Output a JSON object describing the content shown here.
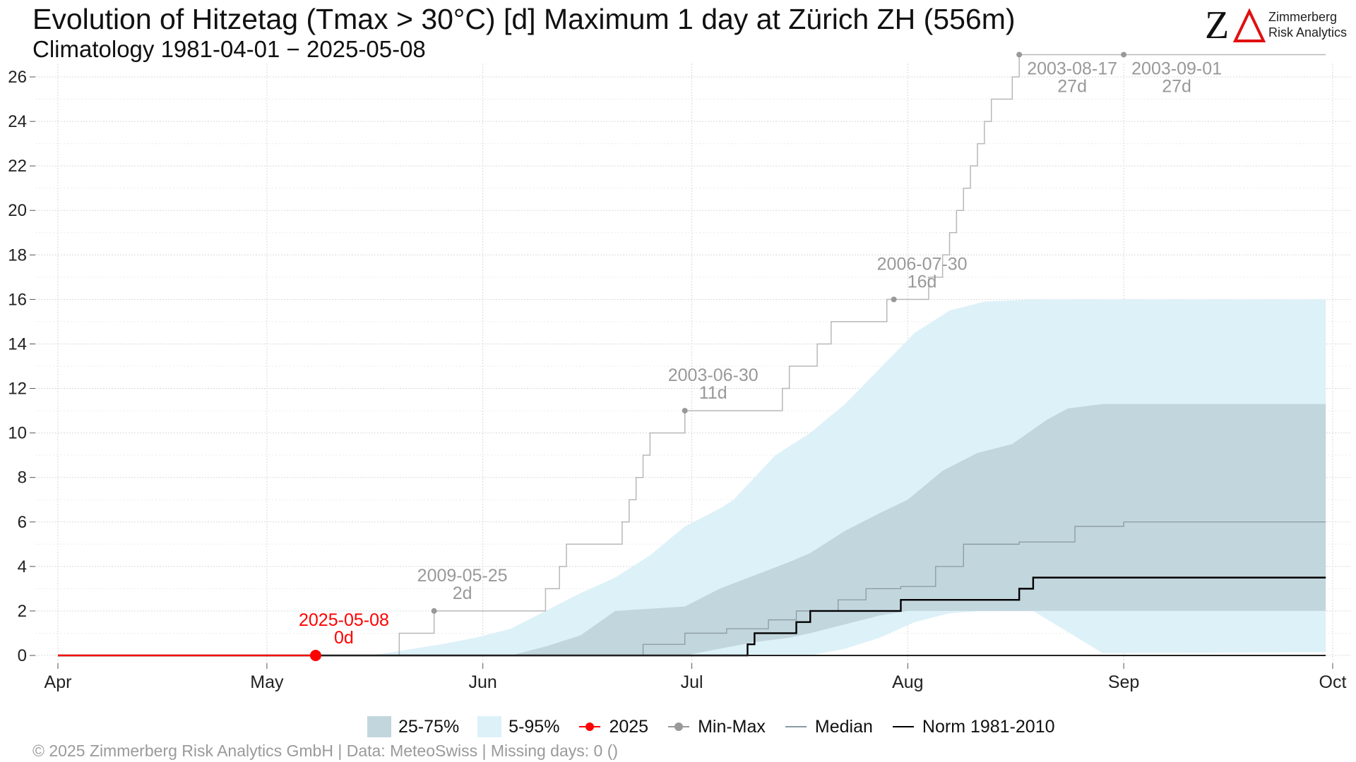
{
  "header": {
    "title": "Evolution of Hitzetag (Tmax > 30°C) [d] Maximum 1 day at Zürich  ZH (556m)",
    "subtitle": "Climatology 1981-04-01 − 2025-05-08"
  },
  "logo": {
    "line1": "Zimmerberg",
    "line2": "Risk Analytics",
    "mark": "ZΔ"
  },
  "footer": "©  2025 Zimmerberg Risk Analytics GmbH | Data: MeteoSwiss | Missing days: 0 ()",
  "legend": [
    {
      "label": "25-75%",
      "kind": "box",
      "color": "#c2d6dd"
    },
    {
      "label": "5-95%",
      "kind": "box",
      "color": "#ddf1f8"
    },
    {
      "label": "2025",
      "kind": "linedot",
      "color": "#ff0000"
    },
    {
      "label": "Min-Max",
      "kind": "linedot",
      "color": "#999999"
    },
    {
      "label": "Median",
      "kind": "line",
      "color": "#8a9aa2"
    },
    {
      "label": "Norm 1981-2010",
      "kind": "line",
      "color": "#000000"
    }
  ],
  "chart_data": {
    "type": "area",
    "x_start": "Apr 1",
    "x_end": "Sep 30",
    "x_ticks": [
      {
        "label": "Apr",
        "day": 0
      },
      {
        "label": "May",
        "day": 30
      },
      {
        "label": "Jun",
        "day": 61
      },
      {
        "label": "Jul",
        "day": 91
      },
      {
        "label": "Aug",
        "day": 122
      },
      {
        "label": "Sep",
        "day": 153
      },
      {
        "label": "Oct",
        "day": 183
      }
    ],
    "ylim": [
      0,
      27
    ],
    "y_ticks": [
      0,
      2,
      4,
      6,
      8,
      10,
      12,
      14,
      16,
      18,
      20,
      22,
      24,
      26
    ],
    "grid": true,
    "colors": {
      "band_25_75": "#c2d6dd",
      "band_5_95": "#ddf1f8",
      "current": "#ff0000",
      "minmax": "#999999",
      "median": "#8a9aa2",
      "norm": "#000000"
    },
    "band_5_95": [
      [
        0,
        0,
        0
      ],
      [
        45,
        0,
        0
      ],
      [
        55,
        0,
        0.5
      ],
      [
        60,
        0,
        0.8
      ],
      [
        65,
        0,
        1.2
      ],
      [
        70,
        0,
        2
      ],
      [
        75,
        0,
        2.8
      ],
      [
        80,
        0,
        3.5
      ],
      [
        85,
        0,
        4.5
      ],
      [
        90,
        0,
        5.8
      ],
      [
        95,
        0,
        6.6
      ],
      [
        97,
        0,
        7
      ],
      [
        103,
        0,
        9
      ],
      [
        108,
        0,
        10
      ],
      [
        113,
        0.3,
        11.3
      ],
      [
        118,
        0.8,
        12.9
      ],
      [
        123,
        1.5,
        14.5
      ],
      [
        128,
        1.9,
        15.5
      ],
      [
        133,
        2,
        15.9
      ],
      [
        140,
        2,
        16
      ],
      [
        150,
        0.1,
        16
      ],
      [
        182,
        0.15,
        16
      ]
    ],
    "band_25_75": [
      [
        0,
        0,
        0
      ],
      [
        65,
        0,
        0
      ],
      [
        70,
        0,
        0.4
      ],
      [
        75,
        0,
        0.9
      ],
      [
        80,
        0,
        2
      ],
      [
        85,
        0,
        2.1
      ],
      [
        90,
        0,
        2.2
      ],
      [
        95,
        0.3,
        3
      ],
      [
        100,
        0.6,
        3.6
      ],
      [
        105,
        0.8,
        4.2
      ],
      [
        108,
        1,
        4.6
      ],
      [
        113,
        1.4,
        5.6
      ],
      [
        118,
        1.8,
        6.4
      ],
      [
        122,
        2,
        7
      ],
      [
        127,
        2,
        8.3
      ],
      [
        132,
        2,
        9.1
      ],
      [
        137,
        2,
        9.5
      ],
      [
        142,
        2,
        10.6
      ],
      [
        145,
        2,
        11.1
      ],
      [
        150,
        2,
        11.3
      ],
      [
        182,
        2,
        11.3
      ]
    ],
    "median": [
      [
        0,
        0
      ],
      [
        76,
        0
      ],
      [
        84,
        0.5
      ],
      [
        90,
        1
      ],
      [
        96,
        1.2
      ],
      [
        102,
        1.6
      ],
      [
        106,
        2
      ],
      [
        112,
        2.5
      ],
      [
        116,
        3
      ],
      [
        121,
        3.1
      ],
      [
        126,
        4
      ],
      [
        130,
        5
      ],
      [
        138,
        5.1
      ],
      [
        146,
        5.8
      ],
      [
        153,
        6
      ],
      [
        182,
        6
      ]
    ],
    "norm": [
      [
        0,
        0
      ],
      [
        99,
        0
      ],
      [
        99,
        0.5
      ],
      [
        100,
        0.5
      ],
      [
        100,
        1
      ],
      [
        106,
        1
      ],
      [
        106,
        1.5
      ],
      [
        108,
        1.5
      ],
      [
        108,
        2
      ],
      [
        121,
        2
      ],
      [
        121,
        2.5
      ],
      [
        138,
        2.5
      ],
      [
        138,
        3
      ],
      [
        140,
        3
      ],
      [
        140,
        3.5
      ],
      [
        182,
        3.5
      ]
    ],
    "max_curve": [
      [
        0,
        0
      ],
      [
        49,
        0
      ],
      [
        49,
        1
      ],
      [
        54,
        1
      ],
      [
        54,
        2
      ],
      [
        70,
        2
      ],
      [
        70,
        3
      ],
      [
        72,
        3
      ],
      [
        72,
        4
      ],
      [
        73,
        4
      ],
      [
        73,
        5
      ],
      [
        81,
        5
      ],
      [
        81,
        6
      ],
      [
        82,
        6
      ],
      [
        82,
        7
      ],
      [
        83,
        7
      ],
      [
        83,
        8
      ],
      [
        84,
        8
      ],
      [
        84,
        9
      ],
      [
        85,
        9
      ],
      [
        85,
        10
      ],
      [
        90,
        10
      ],
      [
        90,
        11
      ],
      [
        104,
        11
      ],
      [
        104,
        12
      ],
      [
        105,
        12
      ],
      [
        105,
        13
      ],
      [
        109,
        13
      ],
      [
        109,
        14
      ],
      [
        111,
        14
      ],
      [
        111,
        15
      ],
      [
        119,
        15
      ],
      [
        119,
        16
      ],
      [
        125,
        16
      ],
      [
        125,
        17
      ],
      [
        127,
        17
      ],
      [
        127,
        18
      ],
      [
        128,
        18
      ],
      [
        128,
        19
      ],
      [
        129,
        19
      ],
      [
        129,
        20
      ],
      [
        130,
        20
      ],
      [
        130,
        21
      ],
      [
        131,
        21
      ],
      [
        131,
        22
      ],
      [
        132,
        22
      ],
      [
        132,
        23
      ],
      [
        133,
        23
      ],
      [
        133,
        24
      ],
      [
        134,
        24
      ],
      [
        134,
        25
      ],
      [
        137,
        25
      ],
      [
        137,
        26
      ],
      [
        138,
        26
      ],
      [
        138,
        27
      ],
      [
        182,
        27
      ]
    ],
    "current": {
      "label": "2025",
      "points": [
        [
          0,
          0
        ],
        [
          37,
          0
        ]
      ],
      "last_day": 37,
      "last_value": 0
    },
    "annotations": [
      {
        "date": "2025-05-08",
        "text": "0d",
        "day": 37,
        "value": 0,
        "style": "current"
      },
      {
        "date": "2009-05-25",
        "text": "2d",
        "day": 54,
        "value": 2,
        "style": "minmax"
      },
      {
        "date": "2003-06-30",
        "text": "11d",
        "day": 90,
        "value": 11,
        "style": "minmax"
      },
      {
        "date": "2006-07-30",
        "text": "16d",
        "day": 120,
        "value": 16,
        "style": "minmax"
      },
      {
        "date": "2003-08-17",
        "text": "27d",
        "day": 138,
        "value": 27,
        "style": "minmax"
      },
      {
        "date": "2003-09-01",
        "text": "27d",
        "day": 153,
        "value": 27,
        "style": "minmax"
      }
    ]
  }
}
